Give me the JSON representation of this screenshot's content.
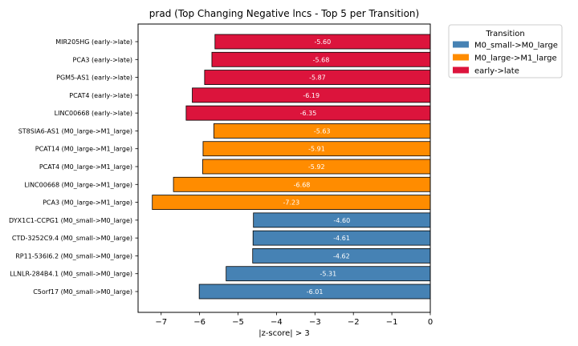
{
  "chart_data": {
    "type": "bar",
    "orientation": "horizontal",
    "title": "prad (Top Changing Negative lncs - Top 5 per Transition)",
    "xlabel": "|z-score| > 3",
    "ylabel": "",
    "xlim": [
      -7.6,
      0
    ],
    "x_ticks": [
      {
        "value": -7,
        "label": "−7"
      },
      {
        "value": -6,
        "label": "−6"
      },
      {
        "value": -5,
        "label": "−5"
      },
      {
        "value": -4,
        "label": "−4"
      },
      {
        "value": -3,
        "label": "−3"
      },
      {
        "value": -2,
        "label": "−2"
      },
      {
        "value": -1,
        "label": "−1"
      },
      {
        "value": 0,
        "label": "0"
      }
    ],
    "grid": false,
    "legend": {
      "title": "Transition",
      "placement": "outside-top-right",
      "entries": [
        {
          "label": "M0_small->M0_large",
          "color": "#4682b4"
        },
        {
          "label": "M0_large->M1_large",
          "color": "#ff8c00"
        },
        {
          "label": "early->late",
          "color": "#dc143c"
        }
      ]
    },
    "bars": [
      {
        "label": "MIR205HG (early->late)",
        "value": -5.6,
        "value_label": "-5.60",
        "color": "#dc143c"
      },
      {
        "label": "PCA3 (early->late)",
        "value": -5.68,
        "value_label": "-5.68",
        "color": "#dc143c"
      },
      {
        "label": "PGM5-AS1 (early->late)",
        "value": -5.87,
        "value_label": "-5.87",
        "color": "#dc143c"
      },
      {
        "label": "PCAT4 (early->late)",
        "value": -6.19,
        "value_label": "-6.19",
        "color": "#dc143c"
      },
      {
        "label": "LINC00668 (early->late)",
        "value": -6.35,
        "value_label": "-6.35",
        "color": "#dc143c"
      },
      {
        "label": "ST8SIA6-AS1 (M0_large->M1_large)",
        "value": -5.63,
        "value_label": "-5.63",
        "color": "#ff8c00"
      },
      {
        "label": "PCAT14 (M0_large->M1_large)",
        "value": -5.91,
        "value_label": "-5.91",
        "color": "#ff8c00"
      },
      {
        "label": "PCAT4 (M0_large->M1_large)",
        "value": -5.92,
        "value_label": "-5.92",
        "color": "#ff8c00"
      },
      {
        "label": "LINC00668 (M0_large->M1_large)",
        "value": -6.68,
        "value_label": "-6.68",
        "color": "#ff8c00"
      },
      {
        "label": "PCA3 (M0_large->M1_large)",
        "value": -7.23,
        "value_label": "-7.23",
        "color": "#ff8c00"
      },
      {
        "label": "DYX1C1-CCPG1 (M0_small->M0_large)",
        "value": -4.6,
        "value_label": "-4.60",
        "color": "#4682b4"
      },
      {
        "label": "CTD-3252C9.4 (M0_small->M0_large)",
        "value": -4.61,
        "value_label": "-4.61",
        "color": "#4682b4"
      },
      {
        "label": "RP11-536I6.2 (M0_small->M0_large)",
        "value": -4.62,
        "value_label": "-4.62",
        "color": "#4682b4"
      },
      {
        "label": "LLNLR-284B4.1 (M0_small->M0_large)",
        "value": -5.31,
        "value_label": "-5.31",
        "color": "#4682b4"
      },
      {
        "label": "C5orf17 (M0_small->M0_large)",
        "value": -6.01,
        "value_label": "-6.01",
        "color": "#4682b4"
      }
    ]
  }
}
